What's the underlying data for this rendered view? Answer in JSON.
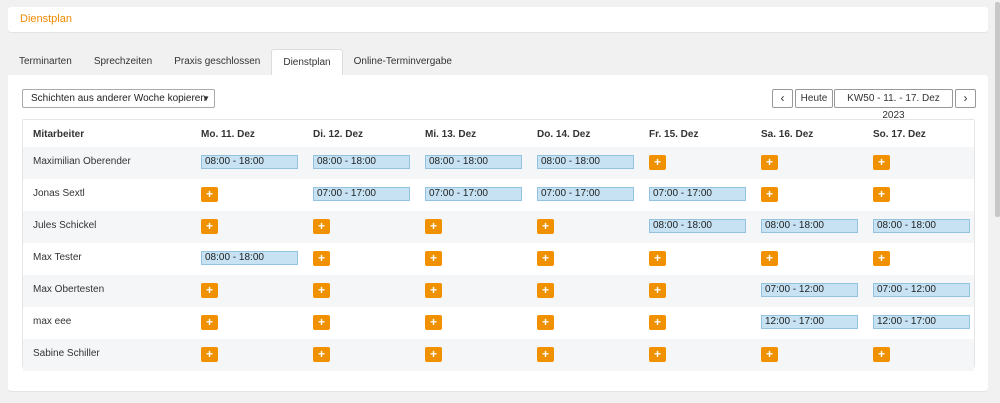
{
  "page": {
    "title": "Dienstplan"
  },
  "tabs": [
    {
      "label": "Terminarten",
      "active": false
    },
    {
      "label": "Sprechzeiten",
      "active": false
    },
    {
      "label": "Praxis geschlossen",
      "active": false
    },
    {
      "label": "Dienstplan",
      "active": true
    },
    {
      "label": "Online-Terminvergabe",
      "active": false
    }
  ],
  "toolbar": {
    "copy_select": "Schichten aus anderer Woche kopieren",
    "prev_icon": "chevron-left-icon",
    "today_label": "Heute",
    "week_label": "KW50 - 11. - 17. Dez 2023",
    "next_icon": "chevron-right-icon"
  },
  "colors": {
    "accent": "#ef8a00",
    "add_button": "#f29100",
    "shift_fill": "#c6e2f3",
    "shift_border": "#93c3e0"
  },
  "schedule": {
    "columns": [
      "Mitarbeiter",
      "Mo. 11. Dez",
      "Di. 12. Dez",
      "Mi. 13. Dez",
      "Do. 14. Dez",
      "Fr. 15. Dez",
      "Sa. 16. Dez",
      "So. 17. Dez"
    ],
    "add_symbol": "+",
    "rows": [
      {
        "name": "Maximilian Oberender",
        "days": [
          "08:00 - 18:00",
          "08:00 - 18:00",
          "08:00 - 18:00",
          "08:00 - 18:00",
          null,
          null,
          null
        ]
      },
      {
        "name": "Jonas Sextl",
        "days": [
          null,
          "07:00 - 17:00",
          "07:00 - 17:00",
          "07:00 - 17:00",
          "07:00 - 17:00",
          null,
          null
        ]
      },
      {
        "name": "Jules Schickel",
        "days": [
          null,
          null,
          null,
          null,
          "08:00 - 18:00",
          "08:00 - 18:00",
          "08:00 - 18:00"
        ]
      },
      {
        "name": "Max Tester",
        "days": [
          "08:00 - 18:00",
          null,
          null,
          null,
          null,
          null,
          null
        ]
      },
      {
        "name": "Max Obertesten",
        "days": [
          null,
          null,
          null,
          null,
          null,
          "07:00 - 12:00",
          "07:00 - 12:00"
        ]
      },
      {
        "name": "max eee",
        "days": [
          null,
          null,
          null,
          null,
          null,
          "12:00 - 17:00",
          "12:00 - 17:00"
        ]
      },
      {
        "name": "Sabine Schiller",
        "days": [
          null,
          null,
          null,
          null,
          null,
          null,
          null
        ]
      }
    ]
  }
}
